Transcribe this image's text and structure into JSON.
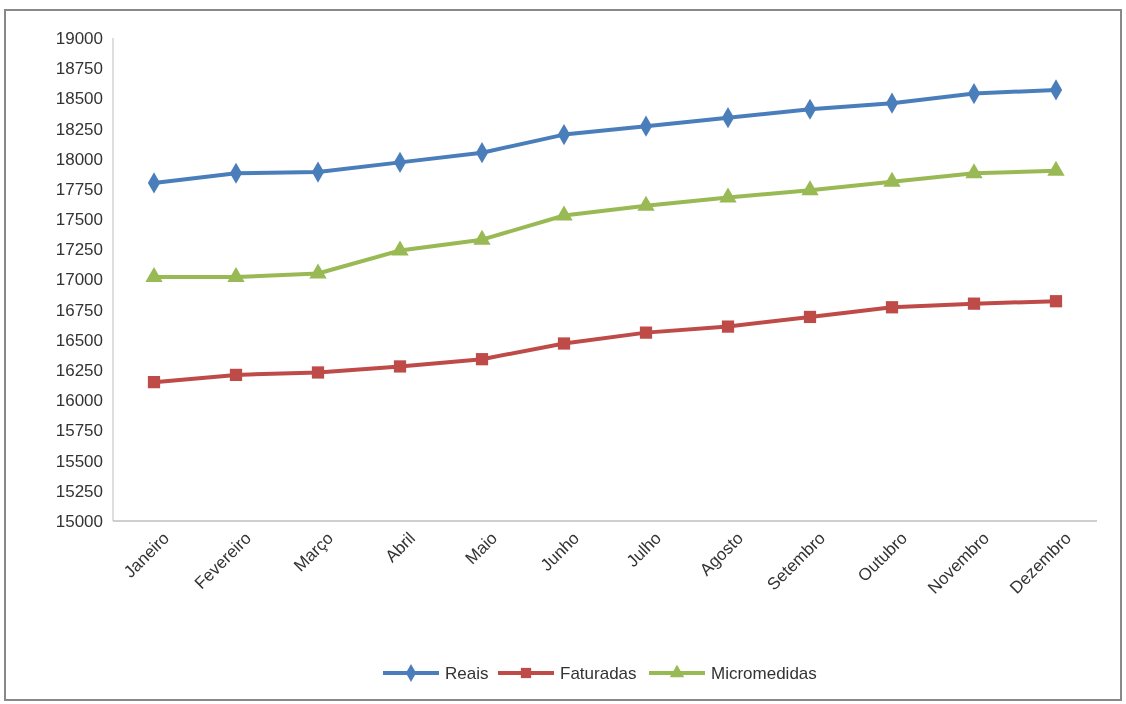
{
  "chart_data": {
    "type": "line",
    "categories": [
      "Janeiro",
      "Fevereiro",
      "Março",
      "Abril",
      "Maio",
      "Junho",
      "Julho",
      "Agosto",
      "Setembro",
      "Outubro",
      "Novembro",
      "Dezembro"
    ],
    "series": [
      {
        "name": "Reais",
        "color": "#4a7ebb",
        "marker": "diamond",
        "values": [
          17800,
          17880,
          17890,
          17970,
          18050,
          18200,
          18270,
          18340,
          18410,
          18460,
          18540,
          18570
        ]
      },
      {
        "name": "Faturadas",
        "color": "#be4b48",
        "marker": "square",
        "values": [
          16150,
          16210,
          16230,
          16280,
          16340,
          16470,
          16560,
          16610,
          16690,
          16770,
          16800,
          16820
        ]
      },
      {
        "name": "Micromedidas",
        "color": "#98b954",
        "marker": "triangle",
        "values": [
          17020,
          17020,
          17050,
          17240,
          17330,
          17530,
          17610,
          17680,
          17740,
          17810,
          17880,
          17900
        ]
      }
    ],
    "ylim": [
      15000,
      19000
    ],
    "yticks": [
      15000,
      15250,
      15500,
      15750,
      16000,
      16250,
      16500,
      16750,
      17000,
      17250,
      17500,
      17750,
      18000,
      18250,
      18500,
      18750,
      19000
    ],
    "grid": false,
    "legend": "bottom"
  }
}
